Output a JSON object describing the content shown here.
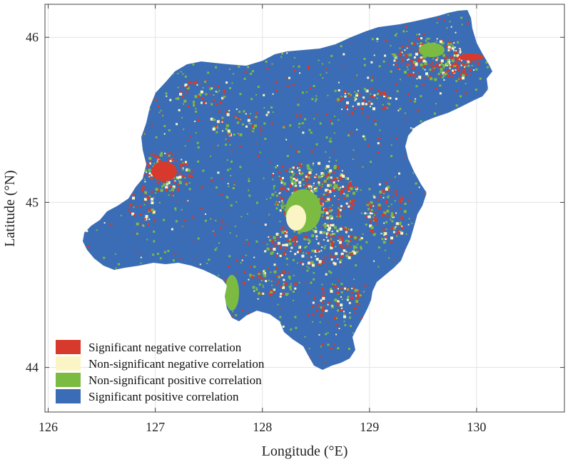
{
  "x_axis": {
    "title": "Longitude (°E)",
    "ticks": [
      "126",
      "127",
      "128",
      "129",
      "130"
    ],
    "range": [
      125.97,
      130.82
    ]
  },
  "y_axis": {
    "title": "Latitude (°N)",
    "ticks": [
      "44",
      "45",
      "46"
    ],
    "range": [
      43.73,
      46.2
    ]
  },
  "grid": true,
  "legend": {
    "placement": "bottom-left",
    "items": [
      {
        "label": "Significant negative correlation",
        "color": "#d73a2c"
      },
      {
        "label": "Non-significant negative correlation",
        "color": "#fbf5c5"
      },
      {
        "label": "Non-significant positive correlation",
        "color": "#7cbb42"
      },
      {
        "label": "Significant positive correlation",
        "color": "#3a6db5"
      }
    ]
  },
  "colors": {
    "region_base": "#3a6db5",
    "significant_negative": "#d73a2c",
    "non_significant_negative": "#fbf5c5",
    "non_significant_positive": "#7cbb42"
  }
}
